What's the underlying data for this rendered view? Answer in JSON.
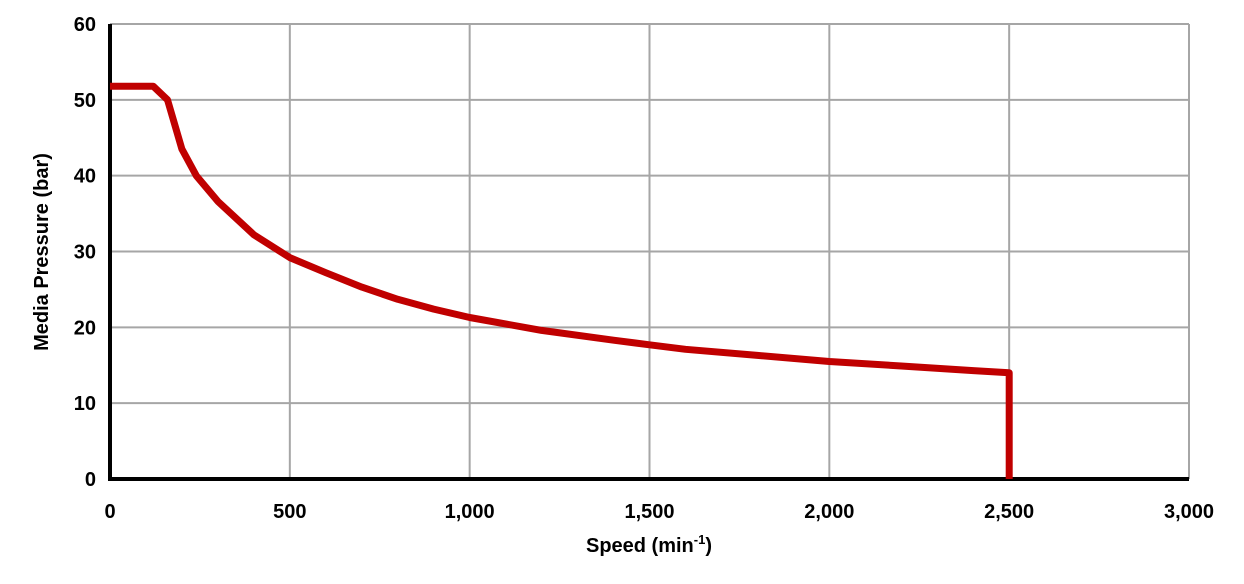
{
  "chart_data": {
    "type": "line",
    "title": "",
    "xlabel": "Speed (min-1)",
    "xlabel_parts": {
      "base": "Speed (min",
      "sup": "-1",
      "end": ")"
    },
    "ylabel": "Media Pressure (bar)",
    "xlim": [
      0,
      3000
    ],
    "ylim": [
      0,
      60
    ],
    "x_ticks": [
      0,
      500,
      1000,
      1500,
      2000,
      2500,
      3000
    ],
    "x_tick_labels": [
      "0",
      "500",
      "1,000",
      "1,500",
      "2,000",
      "2,500",
      "3,000"
    ],
    "y_ticks": [
      0,
      10,
      20,
      30,
      40,
      50,
      60
    ],
    "y_tick_labels": [
      "0",
      "10",
      "20",
      "30",
      "40",
      "50",
      "60"
    ],
    "grid": true,
    "legend": null,
    "series": [
      {
        "name": "Media Pressure",
        "color": "#C00000",
        "x": [
          0,
          120,
          160,
          200,
          240,
          300,
          400,
          500,
          600,
          700,
          800,
          900,
          1000,
          1200,
          1400,
          1500,
          1600,
          1800,
          2000,
          2200,
          2400,
          2500,
          2500
        ],
        "y": [
          51.8,
          51.8,
          50.0,
          43.5,
          40.0,
          36.6,
          32.2,
          29.2,
          27.2,
          25.3,
          23.7,
          22.4,
          21.3,
          19.6,
          18.3,
          17.7,
          17.1,
          16.3,
          15.5,
          14.9,
          14.3,
          14.0,
          0
        ]
      }
    ]
  },
  "colors": {
    "line": "#C00000",
    "grid": "#A6A6A6",
    "axis": "#000000",
    "background": "#FFFFFF"
  }
}
